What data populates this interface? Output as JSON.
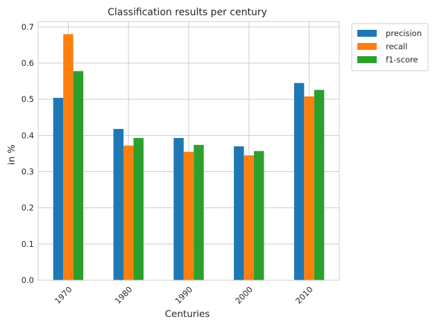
{
  "chart_data": {
    "type": "bar",
    "title": "Classification results per century",
    "xlabel": "Centuries",
    "ylabel": "in %",
    "categories": [
      "1970",
      "1980",
      "1990",
      "2000",
      "2010"
    ],
    "series": [
      {
        "name": "precision",
        "color": "#1f77b4",
        "values": [
          0.504,
          0.418,
          0.393,
          0.37,
          0.545
        ]
      },
      {
        "name": "recall",
        "color": "#ff7f0e",
        "values": [
          0.68,
          0.372,
          0.355,
          0.345,
          0.508
        ]
      },
      {
        "name": "f1-score",
        "color": "#2ca02c",
        "values": [
          0.578,
          0.393,
          0.374,
          0.357,
          0.526
        ]
      }
    ],
    "ylim": [
      0,
      0.715
    ],
    "yticks": [
      "0.0",
      "0.1",
      "0.2",
      "0.3",
      "0.4",
      "0.5",
      "0.6",
      "0.7"
    ],
    "grid": true,
    "legend": "upper-right-outside",
    "xtick_rotation_deg": 45
  }
}
